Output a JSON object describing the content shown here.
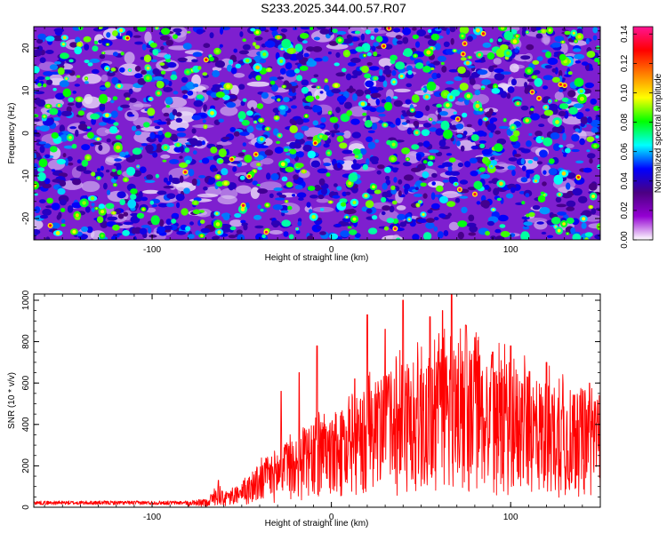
{
  "figure": {
    "title": "S233.2025.344.00.57.R07"
  },
  "chart_data": [
    {
      "type": "heatmap",
      "title": "S233.2025.344.00.57.R07",
      "xlabel": "Height of straight line (km)",
      "ylabel": "Frequency (Hz)",
      "xlim": [
        -166,
        150
      ],
      "ylim": [
        -25,
        25
      ],
      "x_ticks": [
        "-100",
        "0",
        "100"
      ],
      "x_tick_values": [
        -100,
        0,
        100
      ],
      "y_ticks": [
        "20",
        "10",
        "0",
        "-10",
        "-20"
      ],
      "y_tick_values": [
        20,
        10,
        0,
        -10,
        -20
      ],
      "colorbar": {
        "label": "Normalized spectral amplitude",
        "range": [
          0,
          0.145
        ],
        "ticks": [
          "0.00",
          "0.02",
          "0.04",
          "0.06",
          "0.08",
          "0.10",
          "0.12",
          "0.14"
        ],
        "tick_values": [
          0,
          0.02,
          0.04,
          0.06,
          0.08,
          0.1,
          0.12,
          0.14
        ],
        "colormap": [
          "#ffffff",
          "#9400d3",
          "#4b0082",
          "#0000ff",
          "#00ffff",
          "#00ff00",
          "#ffff00",
          "#ff7f00",
          "#ff0000",
          "#ff1493"
        ]
      },
      "field": "dense random speckle of peaks spread uniformly over the whole domain, background mostly purple/blue, peaks up to ~0.14"
    },
    {
      "type": "line",
      "xlabel": "Height of straight line (km)",
      "ylabel": "SNR (10 * v/v)",
      "xlim": [
        -166,
        150
      ],
      "ylim": [
        0,
        1030
      ],
      "x_ticks": [
        "-100",
        "0",
        "100"
      ],
      "x_tick_values": [
        -100,
        0,
        100
      ],
      "y_ticks": [
        "0",
        "200",
        "400",
        "600",
        "800",
        "1000"
      ],
      "y_tick_values": [
        0,
        200,
        400,
        600,
        800,
        1000
      ],
      "line_color": "#ff0000",
      "envelope": {
        "x": [
          -166,
          -80,
          -70,
          -62,
          -60,
          -50,
          -40,
          -30,
          -20,
          -10,
          0,
          10,
          20,
          30,
          40,
          50,
          60,
          70,
          80,
          90,
          100,
          110,
          120,
          130,
          140,
          150
        ],
        "y": [
          25,
          25,
          40,
          110,
          60,
          110,
          210,
          280,
          330,
          390,
          420,
          480,
          560,
          620,
          680,
          720,
          760,
          780,
          760,
          700,
          680,
          640,
          600,
          580,
          560,
          520
        ]
      },
      "peaks": [
        {
          "x": -63,
          "y": 130
        },
        {
          "x": -28,
          "y": 560
        },
        {
          "x": -18,
          "y": 650
        },
        {
          "x": -8,
          "y": 780
        },
        {
          "x": 13,
          "y": 620
        },
        {
          "x": 20,
          "y": 930
        },
        {
          "x": 30,
          "y": 860
        },
        {
          "x": 40,
          "y": 1000
        },
        {
          "x": 55,
          "y": 920
        },
        {
          "x": 62,
          "y": 950
        },
        {
          "x": 67,
          "y": 1035
        },
        {
          "x": 75,
          "y": 880
        },
        {
          "x": 80,
          "y": 820
        },
        {
          "x": 90,
          "y": 750
        },
        {
          "x": 100,
          "y": 780
        },
        {
          "x": 120,
          "y": 700
        },
        {
          "x": 144,
          "y": 600
        }
      ]
    }
  ]
}
